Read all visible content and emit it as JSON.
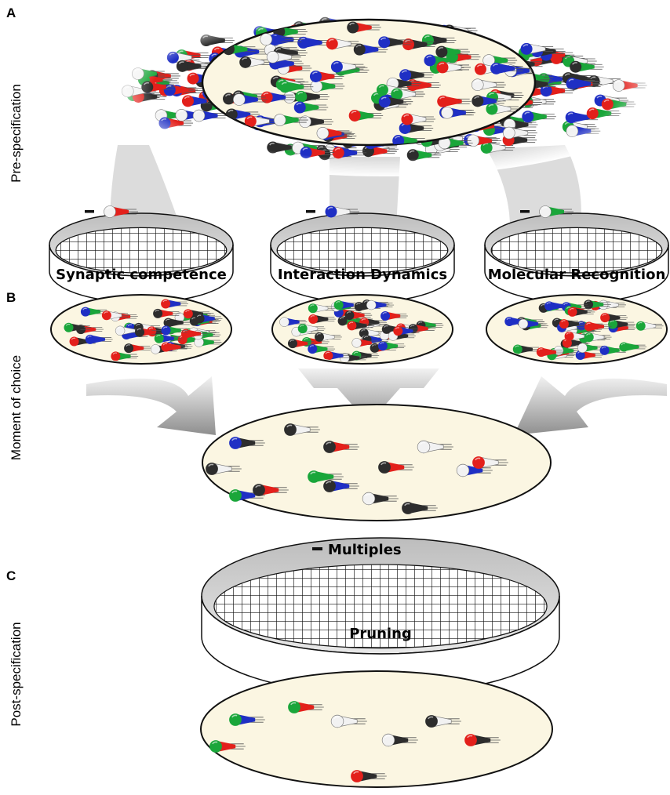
{
  "panels": [
    {
      "letter": "A",
      "label": "Pre-specification"
    },
    {
      "letter": "B",
      "label": "Moment of choice"
    },
    {
      "letter": "C",
      "label": "Post-specification"
    }
  ],
  "filters": [
    {
      "label": "Synaptic competence"
    },
    {
      "label": "Interaction Dynamics"
    },
    {
      "label": "Molecular Recognition"
    }
  ],
  "pruning": {
    "removed": "Multiples",
    "label": "Pruning"
  }
}
